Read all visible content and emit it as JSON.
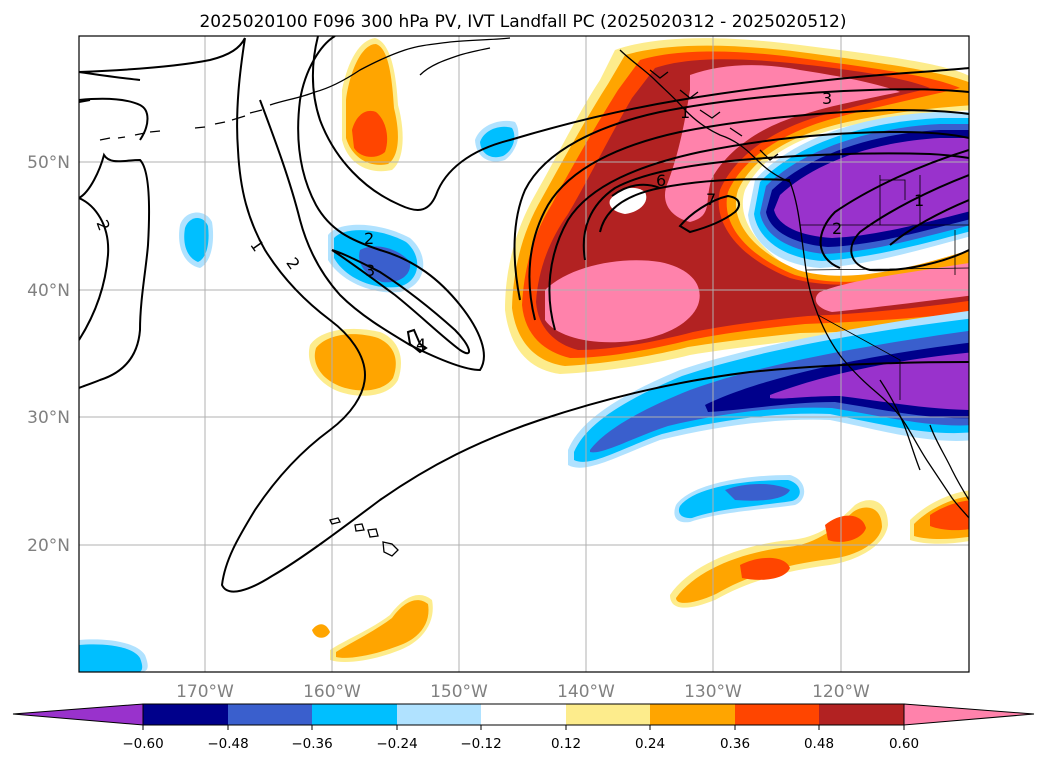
{
  "title": "2025020100 F096 300 hPa PV, IVT Landfall PC (2025020312 - 2025020512)",
  "map": {
    "lon_labels": [
      "170°W",
      "160°W",
      "150°W",
      "140°W",
      "130°W",
      "120°W"
    ],
    "lat_labels": [
      "50°N",
      "40°N",
      "30°N",
      "20°N"
    ],
    "grid": true
  },
  "colorbar": {
    "ticks": [
      "−0.60",
      "−0.48",
      "−0.36",
      "−0.24",
      "−0.12",
      "0.12",
      "0.24",
      "0.36",
      "0.48",
      "0.60"
    ],
    "colors": [
      "#9932cc",
      "#00008b",
      "#3a5fcd",
      "#00bfff",
      "#b0e2ff",
      "#ffffff",
      "#fdec8c",
      "#ffa500",
      "#ff4500",
      "#b22222",
      "#ff82ab"
    ],
    "extend": "both"
  },
  "contour_labels": [
    "1",
    "2",
    "2",
    "3",
    "4",
    "6",
    "7",
    "3",
    "2",
    "1",
    "2",
    "1"
  ],
  "colors": {
    "gridline": "#b0b0b0",
    "tick_text": "#808080"
  }
}
